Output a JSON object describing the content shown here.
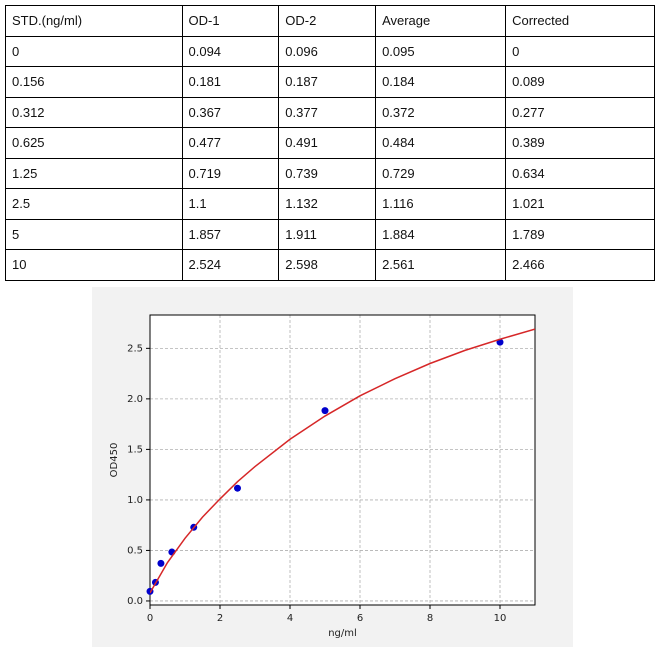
{
  "table": {
    "header": [
      "STD.(ng/ml)",
      "OD-1",
      "OD-2",
      "Average",
      "Corrected"
    ],
    "rows": [
      [
        "0",
        "0.094",
        "0.096",
        "0.095",
        "0"
      ],
      [
        "0.156",
        "0.181",
        "0.187",
        "0.184",
        "0.089"
      ],
      [
        "0.312",
        "0.367",
        "0.377",
        "0.372",
        "0.277"
      ],
      [
        "0.625",
        "0.477",
        "0.491",
        "0.484",
        "0.389"
      ],
      [
        "1.25",
        "0.719",
        "0.739",
        "0.729",
        "0.634"
      ],
      [
        "2.5",
        "1.1",
        "1.132",
        "1.116",
        "1.021"
      ],
      [
        "5",
        "1.857",
        "1.911",
        "1.884",
        "1.789"
      ],
      [
        "10",
        "2.524",
        "2.598",
        "2.561",
        "2.466"
      ]
    ]
  },
  "chart_data": {
    "type": "scatter",
    "x_label": "ng/ml",
    "y_label": "OD450",
    "x": [
      0,
      0.156,
      0.312,
      0.625,
      1.25,
      2.5,
      5,
      10
    ],
    "series": [
      {
        "color": "#0000cc",
        "values": [
          0.095,
          0.184,
          0.372,
          0.484,
          0.729,
          1.116,
          1.884,
          2.561
        ]
      },
      {
        "type": "line",
        "color": "#d62728",
        "x": [
          0,
          0.5,
          1,
          1.5,
          2,
          2.5,
          3,
          4,
          5,
          6,
          7,
          8,
          9,
          10,
          11
        ],
        "values": [
          0.08,
          0.38,
          0.62,
          0.83,
          1.01,
          1.18,
          1.33,
          1.6,
          1.83,
          2.03,
          2.2,
          2.35,
          2.48,
          2.59,
          2.69
        ]
      }
    ],
    "xlim": [
      0,
      11
    ],
    "xticks": [
      0,
      2,
      4,
      6,
      8,
      10
    ],
    "ylim": [
      -0.04,
      2.83
    ],
    "yticks": [
      {
        "value": 0,
        "label": "0.0"
      },
      {
        "value": 0.5,
        "label": "0.5"
      },
      {
        "value": 1,
        "label": "1.0"
      },
      {
        "value": 1.5,
        "label": "1.5"
      },
      {
        "value": 2,
        "label": "2.0"
      },
      {
        "value": 2.5,
        "label": "2.5"
      }
    ],
    "grid": true
  }
}
